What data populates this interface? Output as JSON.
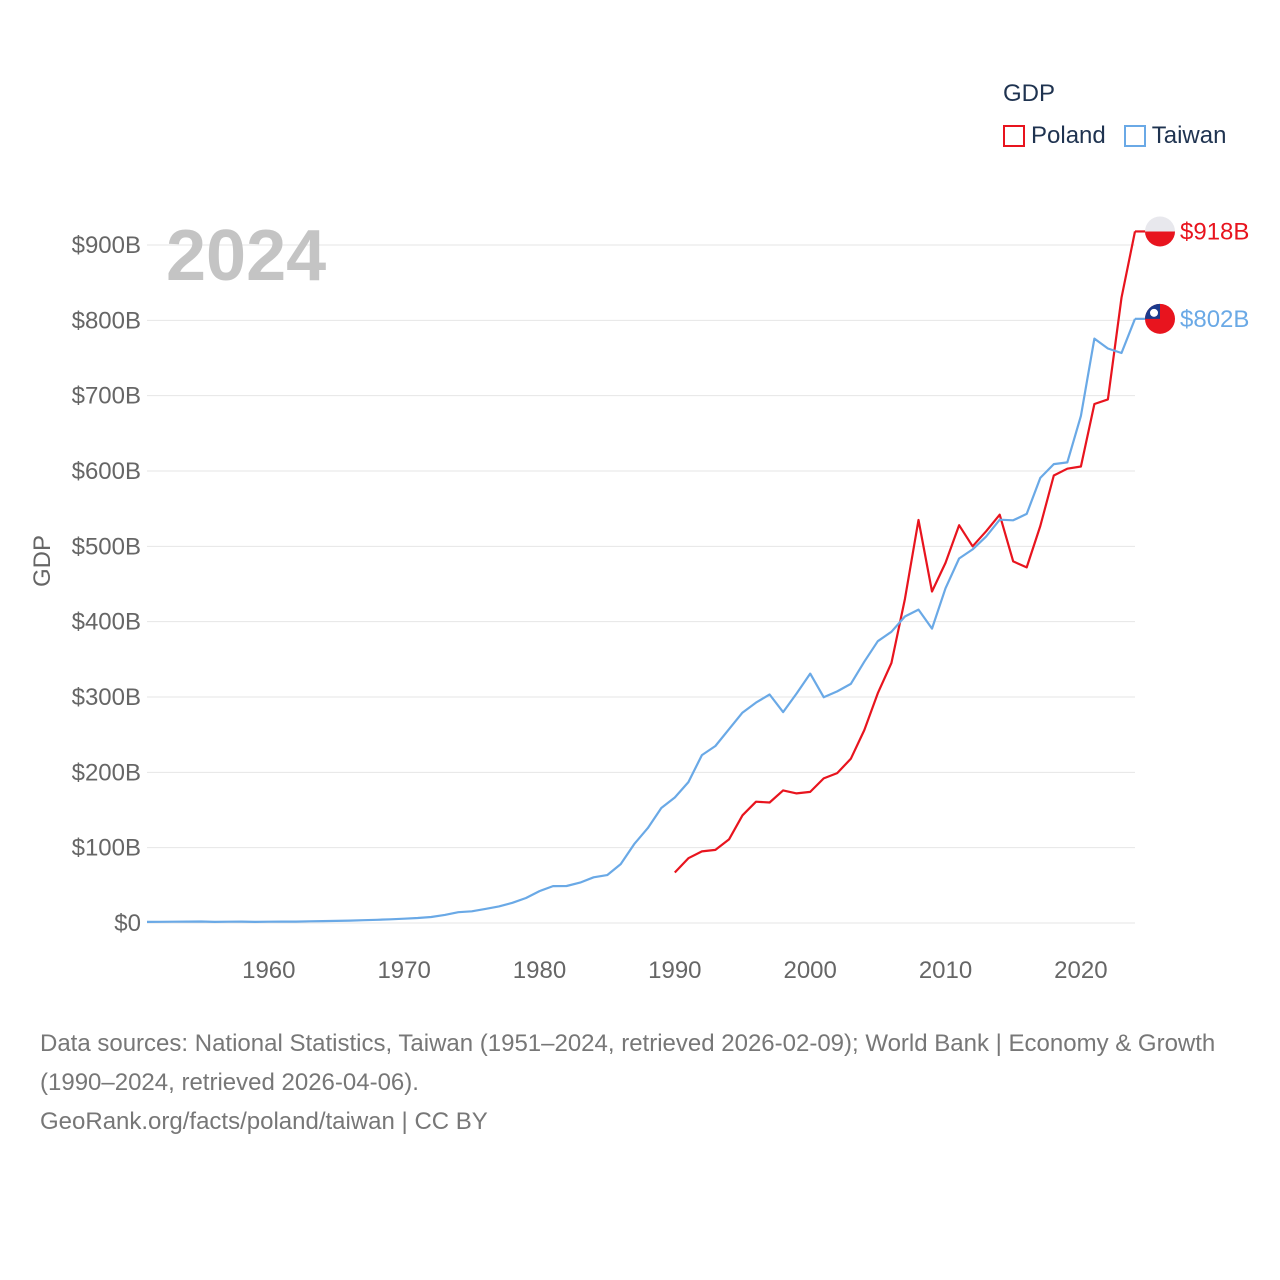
{
  "legend": {
    "title": "GDP",
    "items": [
      {
        "name": "Poland",
        "color": "#e8141e"
      },
      {
        "name": "Taiwan",
        "color": "#6aa9e6"
      }
    ]
  },
  "source": {
    "line1": "Data sources: National Statistics, Taiwan (1951–2024, retrieved 2026-02-09); World Bank | Economy & Growth (1990–2024, retrieved 2026-04-06).",
    "line2": "GeoRank.org/facts/poland/taiwan | CC BY"
  },
  "chart_data": {
    "type": "line",
    "title": "GDP",
    "year_label": "2024",
    "ylabel": "GDP",
    "xlabel": "",
    "xlim": [
      1951,
      2024
    ],
    "ylim": [
      0,
      900
    ],
    "x_ticks": [
      1960,
      1970,
      1980,
      1990,
      2000,
      2010,
      2020
    ],
    "x_tick_labels": [
      "1960",
      "1970",
      "1980",
      "1990",
      "2000",
      "2010",
      "2020"
    ],
    "y_ticks": [
      0,
      100,
      200,
      300,
      400,
      500,
      600,
      700,
      800,
      900
    ],
    "y_tick_labels": [
      "$0",
      "$100B",
      "$200B",
      "$300B",
      "$400B",
      "$500B",
      "$600B",
      "$700B",
      "$800B",
      "$900B"
    ],
    "grid": true,
    "legend_position": "top-right",
    "series": [
      {
        "name": "Poland",
        "color": "#e8141e",
        "end_label": "$918B",
        "x": [
          1990,
          1991,
          1992,
          1993,
          1994,
          1995,
          1996,
          1997,
          1998,
          1999,
          2000,
          2001,
          2002,
          2003,
          2004,
          2005,
          2006,
          2007,
          2008,
          2009,
          2010,
          2011,
          2012,
          2013,
          2014,
          2015,
          2016,
          2017,
          2018,
          2019,
          2020,
          2021,
          2022,
          2023,
          2024
        ],
        "values": [
          67,
          86,
          95,
          97,
          111,
          143,
          161,
          160,
          176,
          172,
          174,
          192,
          199,
          218,
          256,
          305,
          345,
          430,
          535,
          440,
          478,
          528,
          500,
          520,
          542,
          480,
          472,
          527,
          594,
          603,
          606,
          689,
          695,
          830,
          918
        ]
      },
      {
        "name": "Taiwan",
        "color": "#6aa9e6",
        "end_label": "$802B",
        "x": [
          1951,
          1952,
          1953,
          1954,
          1955,
          1956,
          1957,
          1958,
          1959,
          1960,
          1961,
          1962,
          1963,
          1964,
          1965,
          1966,
          1967,
          1968,
          1969,
          1970,
          1971,
          1972,
          1973,
          1974,
          1975,
          1976,
          1977,
          1978,
          1979,
          1980,
          1981,
          1982,
          1983,
          1984,
          1985,
          1986,
          1987,
          1988,
          1989,
          1990,
          1991,
          1992,
          1993,
          1994,
          1995,
          1996,
          1997,
          1998,
          1999,
          2000,
          2001,
          2002,
          2003,
          2004,
          2005,
          2006,
          2007,
          2008,
          2009,
          2010,
          2011,
          2012,
          2013,
          2014,
          2015,
          2016,
          2017,
          2018,
          2019,
          2020,
          2021,
          2022,
          2023,
          2024
        ],
        "values": [
          1.4,
          1.6,
          1.7,
          1.9,
          2.0,
          1.5,
          1.7,
          1.9,
          1.4,
          1.7,
          1.8,
          1.9,
          2.2,
          2.5,
          2.8,
          3.2,
          3.7,
          4.2,
          4.9,
          5.7,
          6.6,
          7.9,
          10.7,
          14.4,
          15.5,
          18.7,
          22.0,
          26.8,
          33.2,
          42.3,
          49.0,
          49.1,
          53.6,
          60.6,
          63.6,
          78.2,
          104.7,
          126.0,
          152.6,
          166.6,
          187.1,
          222.9,
          235.0,
          257.2,
          279.3,
          292.5,
          303.3,
          280.0,
          304.7,
          331.0,
          299.8,
          307.4,
          317.4,
          346.9,
          374.1,
          386.5,
          406.9,
          416.0,
          390.8,
          444.3,
          483.9,
          495.9,
          512.9,
          535.3,
          534.5,
          543.1,
          590.8,
          609.2,
          611.4,
          673.1,
          775.7,
          762.6,
          756.6,
          802.0
        ]
      }
    ]
  }
}
